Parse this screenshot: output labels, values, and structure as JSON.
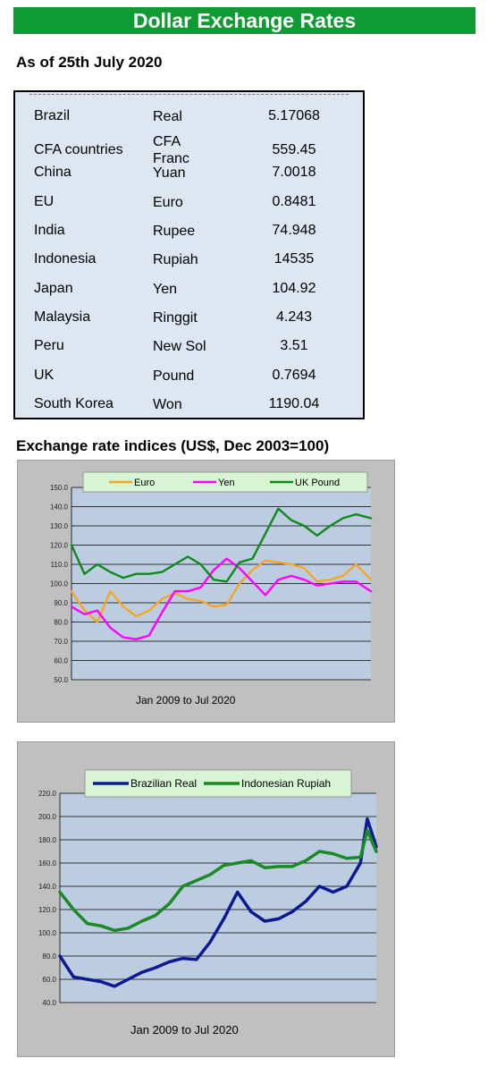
{
  "header": {
    "title": "Dollar Exchange Rates",
    "as_of": "As of 25th July 2020"
  },
  "rates_table": {
    "rows": [
      {
        "country": "Brazil",
        "currency": "Real",
        "rate": "5.17068"
      },
      {
        "country": "CFA countries",
        "currency": "CFA Franc",
        "rate": "559.45"
      },
      {
        "country": "China",
        "currency": "Yuan",
        "rate": "7.0018"
      },
      {
        "country": "EU",
        "currency": "Euro",
        "rate": "0.8481"
      },
      {
        "country": "India",
        "currency": "Rupee",
        "rate": "74.948"
      },
      {
        "country": "Indonesia",
        "currency": "Rupiah",
        "rate": "14535"
      },
      {
        "country": "Japan",
        "currency": "Yen",
        "rate": "104.92"
      },
      {
        "country": "Malaysia",
        "currency": "Ringgit",
        "rate": "4.243"
      },
      {
        "country": "Peru",
        "currency": "New Sol",
        "rate": "3.51"
      },
      {
        "country": "UK",
        "currency": "Pound",
        "rate": "0.7694"
      },
      {
        "country": "South Korea",
        "currency": "Won",
        "rate": "1190.04"
      }
    ]
  },
  "indices_section": {
    "title": "Exchange rate indices (US$, Dec 2003=100)"
  },
  "colors": {
    "banner": "#109a34",
    "euro": "#f5a623",
    "yen": "#ff00ff",
    "uk_pound": "#0f8a1a",
    "brazilian_real": "#0b1a8f",
    "indonesian_rupiah": "#1a8a22",
    "plot_bg": "#bccde2",
    "panel_bg": "#c0c0c0",
    "legend_bg": "#d7f5d3"
  },
  "chart_data": [
    {
      "type": "line",
      "xlabel": "Jan 2009  to Jul 2020",
      "ylim": [
        50,
        150
      ],
      "yticks": [
        "150.0",
        "140.0",
        "130.0",
        "120.0",
        "110.0",
        "100.0",
        "90.0",
        "80.0",
        "70.0",
        "60.0",
        "50.0"
      ],
      "grid": true,
      "legend_position": "top",
      "x": [
        2009.0,
        2009.5,
        2010.0,
        2010.5,
        2011.0,
        2011.5,
        2012.0,
        2012.5,
        2013.0,
        2013.5,
        2014.0,
        2014.5,
        2015.0,
        2015.5,
        2016.0,
        2016.5,
        2017.0,
        2017.5,
        2018.0,
        2018.5,
        2019.0,
        2019.5,
        2020.0,
        2020.58
      ],
      "series": [
        {
          "name": "Euro",
          "values": [
            96,
            86,
            80,
            96,
            88,
            83,
            86,
            92,
            95,
            92,
            91,
            88,
            89,
            100,
            107,
            112,
            111,
            110,
            108,
            101,
            102,
            104,
            110,
            102
          ]
        },
        {
          "name": "Yen",
          "values": [
            88,
            84,
            86,
            77,
            72,
            71,
            73,
            85,
            96,
            96,
            98,
            107,
            113,
            108,
            101,
            94,
            102,
            104,
            102,
            99,
            100,
            101,
            101,
            96
          ]
        },
        {
          "name": "UK Pound",
          "values": [
            120,
            105,
            110,
            106,
            103,
            105,
            105,
            106,
            110,
            114,
            110,
            102,
            101,
            111,
            113,
            126,
            139,
            133,
            130,
            125,
            130,
            134,
            136,
            134
          ]
        }
      ]
    },
    {
      "type": "line",
      "xlabel": "Jan 2009  to Jul 2020",
      "ylim": [
        40,
        220
      ],
      "yticks": [
        "220.0",
        "200.0",
        "180.0",
        "160.0",
        "140.0",
        "120.0",
        "100.0",
        "80.0",
        "60.0",
        "40.0"
      ],
      "grid": true,
      "legend_position": "top",
      "x": [
        2009.0,
        2009.5,
        2010.0,
        2010.5,
        2011.0,
        2011.5,
        2012.0,
        2012.5,
        2013.0,
        2013.5,
        2014.0,
        2014.5,
        2015.0,
        2015.5,
        2016.0,
        2016.5,
        2017.0,
        2017.5,
        2018.0,
        2018.5,
        2019.0,
        2019.5,
        2020.0,
        2020.25,
        2020.58
      ],
      "series": [
        {
          "name": "Brazilian Real",
          "values": [
            80,
            62,
            60,
            58,
            54,
            60,
            66,
            70,
            75,
            78,
            77,
            92,
            112,
            135,
            118,
            110,
            112,
            118,
            127,
            140,
            135,
            140,
            160,
            198,
            174
          ]
        },
        {
          "name": "Indonesian Rupiah",
          "values": [
            135,
            120,
            108,
            106,
            102,
            104,
            110,
            115,
            125,
            140,
            145,
            150,
            158,
            160,
            162,
            156,
            157,
            157,
            162,
            170,
            168,
            164,
            165,
            188,
            170
          ]
        }
      ]
    }
  ]
}
